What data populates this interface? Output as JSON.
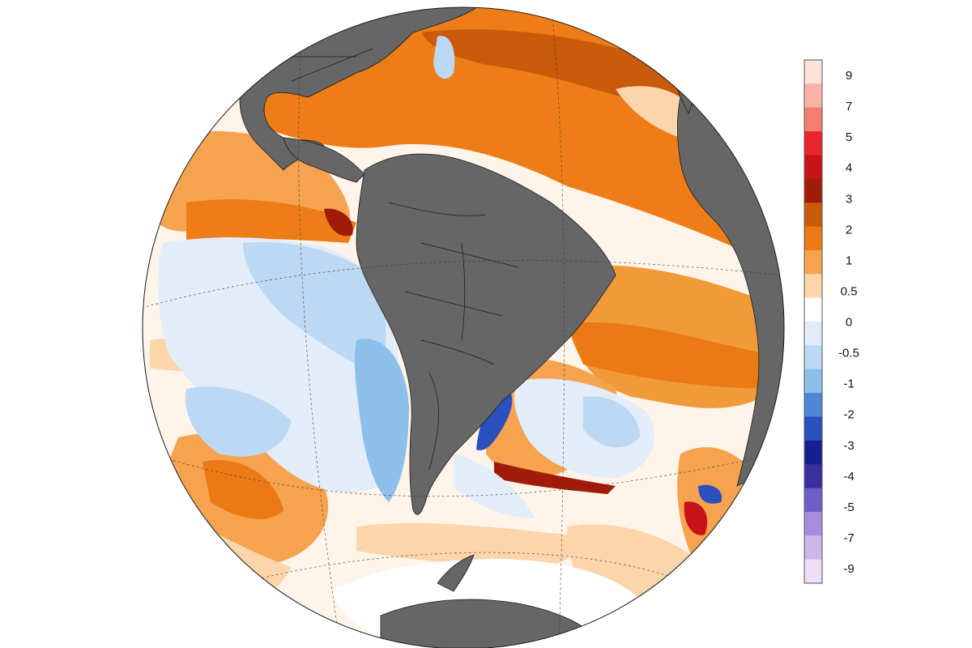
{
  "map": {
    "projection": "orthographic",
    "variable_kind": "sea-surface-temperature-anomaly",
    "land_color": "#666666",
    "ice_color": "#ffffff",
    "ocean_border_color": "#1a1a1a",
    "graticule_color": "#333333"
  },
  "legend": {
    "orientation": "vertical",
    "placement": "right",
    "labels": [
      "9",
      "7",
      "5",
      "4",
      "3",
      "2",
      "1",
      "0.5",
      "0",
      "-0.5",
      "-1",
      "-2",
      "-3",
      "-4",
      "-5",
      "-7",
      "-9"
    ],
    "colors": [
      "#fde2da",
      "#f8b3a6",
      "#f17e6f",
      "#e8262a",
      "#c81416",
      "#a01c08",
      "#c85a0a",
      "#ec7a14",
      "#f6a350",
      "#fcd5ab",
      "#ffffff",
      "#e2edf9",
      "#bcd8f3",
      "#8cc0ea",
      "#4f86d8",
      "#2a4fbf",
      "#15208e",
      "#3a2fa0",
      "#6e5fc7",
      "#a48edd",
      "#cdb6ea",
      "#ecdff3"
    ]
  }
}
